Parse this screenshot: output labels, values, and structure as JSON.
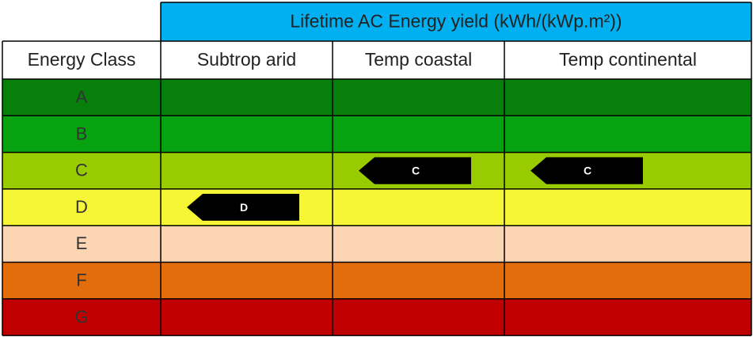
{
  "header": {
    "title": "Lifetime AC Energy yield (kWh/(kWp.m²))",
    "color": "#00b0f0"
  },
  "table": {
    "columns": [
      "Energy Class",
      "Subtrop arid",
      "Temp coastal",
      "Temp continental"
    ],
    "classes": [
      {
        "label": "A",
        "color": "#067f0b"
      },
      {
        "label": "B",
        "color": "#06a210"
      },
      {
        "label": "C",
        "color": "#98cb00"
      },
      {
        "label": "D",
        "color": "#f6f536"
      },
      {
        "label": "E",
        "color": "#fcd5b4"
      },
      {
        "label": "F",
        "color": "#e36c0b"
      },
      {
        "label": "G",
        "color": "#c00000"
      }
    ],
    "ratings": [
      "D",
      "C",
      "C"
    ]
  }
}
